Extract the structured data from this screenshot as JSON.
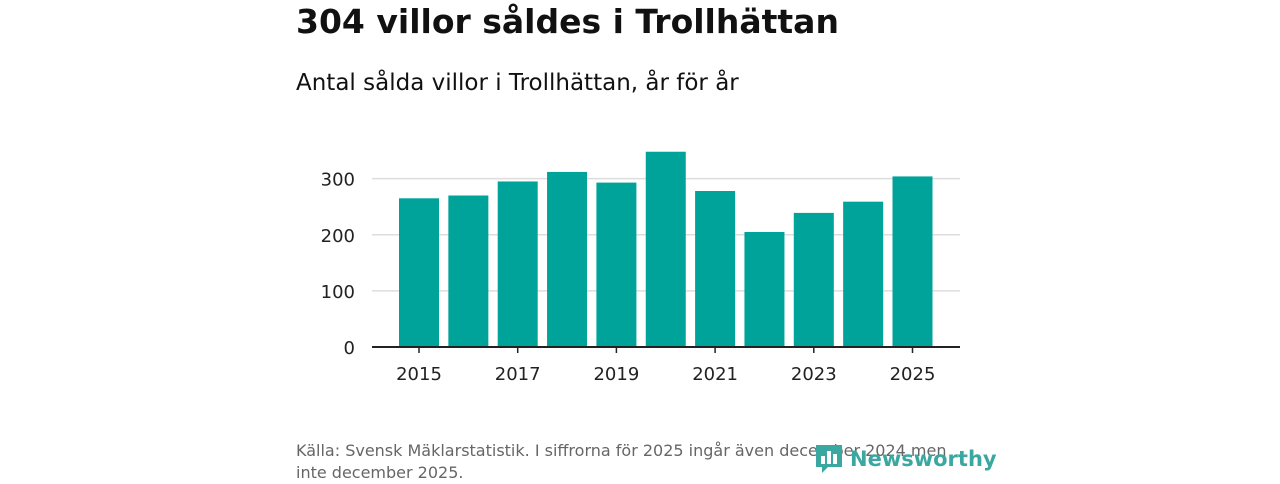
{
  "header": {
    "title": "304 villor såldes i Trollhättan",
    "subtitle": "Antal sålda villor i Trollhättan, år för år"
  },
  "footer": {
    "source": "Källa: Svensk Mäklarstatistik. I siffrorna för 2025 ingår även december 2024 men inte december 2025.",
    "logo_text": "Newsworthy"
  },
  "colors": {
    "bar": "#00a39a",
    "grid": "#dddddd",
    "axis": "#222222",
    "logo": "#3aa8a0"
  },
  "chart_data": {
    "type": "bar",
    "title": "Antal sålda villor i Trollhättan, år för år",
    "xlabel": "",
    "ylabel": "",
    "categories": [
      "2015",
      "2016",
      "2017",
      "2018",
      "2019",
      "2020",
      "2021",
      "2022",
      "2023",
      "2024",
      "2025"
    ],
    "values": [
      265,
      270,
      295,
      312,
      293,
      348,
      278,
      205,
      239,
      259,
      304
    ],
    "x_tick_labels": [
      "2015",
      "2017",
      "2019",
      "2021",
      "2023",
      "2025"
    ],
    "y_ticks": [
      0,
      100,
      200,
      300
    ],
    "ylim": [
      0,
      360
    ],
    "grid": true
  }
}
